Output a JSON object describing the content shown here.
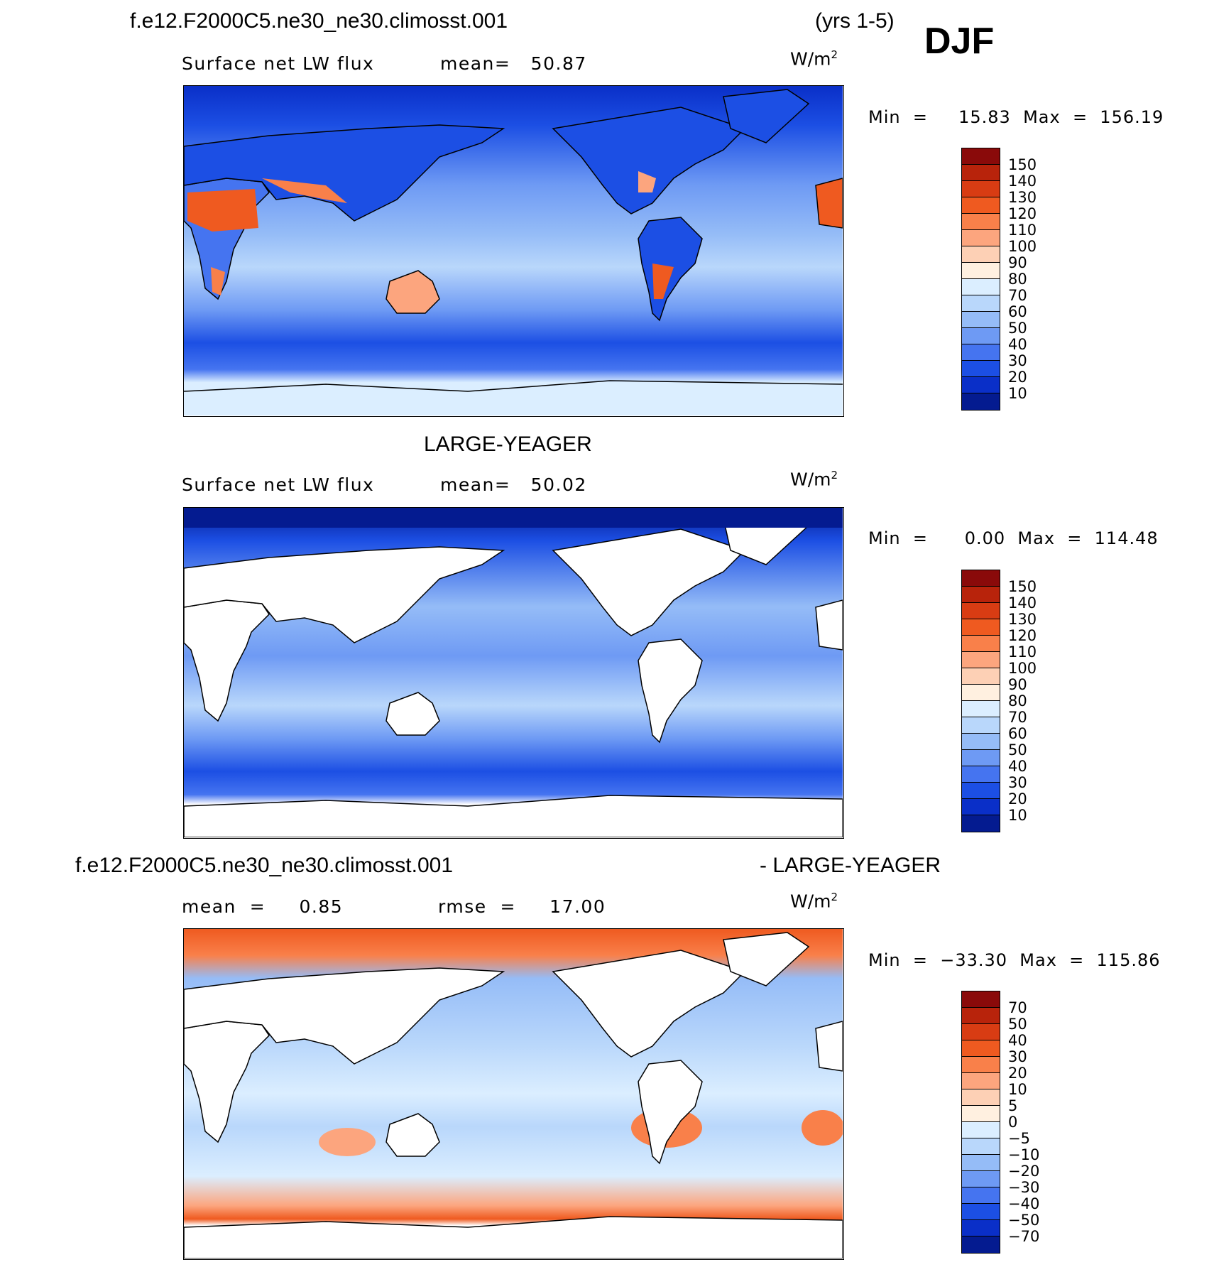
{
  "header": {
    "case_name": "f.e12.F2000C5.ne30_ne30.climosst.001",
    "years": "(yrs 1-5)",
    "season": "DJF"
  },
  "panels": [
    {
      "title": "",
      "variable": "Surface net LW flux",
      "stat1": "mean=   50.87",
      "stat2": "",
      "unit": "W/m",
      "unit_sup": "2",
      "minmax": "Min  =     15.83  Max  =  156.19",
      "colorbar_labels": [
        "150",
        "140",
        "130",
        "120",
        "110",
        "100",
        "90",
        "80",
        "70",
        "60",
        "50",
        "40",
        "30",
        "20",
        "10"
      ],
      "colorbar_colors": [
        "#8a0a0a",
        "#b8230b",
        "#d83c13",
        "#ef5a20",
        "#f9804a",
        "#fca57e",
        "#fdd0b5",
        "#fff0e0",
        "#dbeeff",
        "#b9d7fb",
        "#95bcf7",
        "#6e9af4",
        "#4574f0",
        "#1c4fe4",
        "#0a2fc8",
        "#041b90"
      ],
      "ocean_level": 0.42,
      "land_mode": "filled"
    },
    {
      "title": "LARGE-YEAGER",
      "variable": "Surface net LW flux",
      "stat1": "mean=   50.02",
      "stat2": "",
      "unit": "W/m",
      "unit_sup": "2",
      "minmax": "Min  =      0.00  Max  =  114.48",
      "colorbar_labels": [
        "150",
        "140",
        "130",
        "120",
        "110",
        "100",
        "90",
        "80",
        "70",
        "60",
        "50",
        "40",
        "30",
        "20",
        "10"
      ],
      "colorbar_colors": [
        "#8a0a0a",
        "#b8230b",
        "#d83c13",
        "#ef5a20",
        "#f9804a",
        "#fca57e",
        "#fdd0b5",
        "#fff0e0",
        "#dbeeff",
        "#b9d7fb",
        "#95bcf7",
        "#6e9af4",
        "#4574f0",
        "#1c4fe4",
        "#0a2fc8",
        "#041b90"
      ],
      "ocean_level": 0.4,
      "land_mode": "white"
    },
    {
      "title_left": "f.e12.F2000C5.ne30_ne30.climosst.001",
      "title_right": "- LARGE-YEAGER",
      "variable": "",
      "stat1": "mean  =     0.85",
      "stat2": "rmse  =     17.00",
      "unit": "W/m",
      "unit_sup": "2",
      "minmax": "Min  =  −33.30  Max  =  115.86",
      "colorbar_labels": [
        "70",
        "50",
        "40",
        "30",
        "20",
        "10",
        "5",
        "0",
        "−5",
        "−10",
        "−20",
        "−30",
        "−40",
        "−50",
        "−70"
      ],
      "colorbar_colors": [
        "#8a0a0a",
        "#b8230b",
        "#d83c13",
        "#ef5a20",
        "#f9804a",
        "#fca57e",
        "#fdd0b5",
        "#fff0e0",
        "#dbeeff",
        "#b9d7fb",
        "#95bcf7",
        "#6e9af4",
        "#4574f0",
        "#1c4fe4",
        "#0a2fc8",
        "#041b90"
      ],
      "ocean_level": 0.55,
      "land_mode": "white"
    }
  ]
}
